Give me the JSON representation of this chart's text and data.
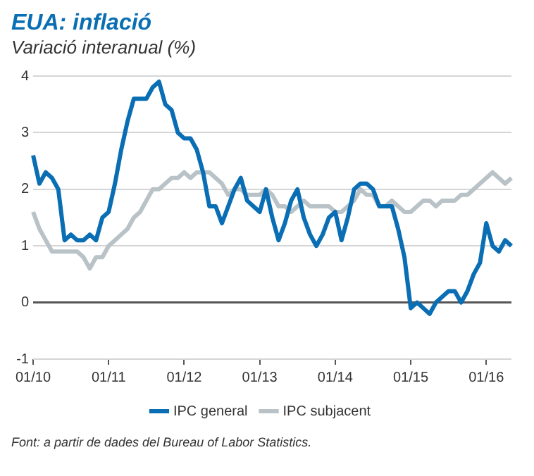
{
  "chart_data": {
    "type": "line",
    "title": "EUA: inflació",
    "subtitle": "Variació interanual (%)",
    "categories": [
      "01/10",
      null,
      null,
      null,
      null,
      null,
      null,
      null,
      null,
      null,
      null,
      null,
      "01/11",
      null,
      null,
      null,
      null,
      null,
      null,
      null,
      null,
      null,
      null,
      null,
      "01/12",
      null,
      null,
      null,
      null,
      null,
      null,
      null,
      null,
      null,
      null,
      null,
      "01/13",
      null,
      null,
      null,
      null,
      null,
      null,
      null,
      null,
      null,
      null,
      null,
      "01/14",
      null,
      null,
      null,
      null,
      null,
      null,
      null,
      null,
      null,
      null,
      null,
      "01/15",
      null,
      null,
      null,
      null,
      null,
      null,
      null,
      null,
      null,
      null,
      null,
      "01/16",
      null,
      null,
      null,
      null
    ],
    "series": [
      {
        "name": "IPC general",
        "color": "#0a6eb4",
        "values": [
          2.6,
          2.1,
          2.3,
          2.2,
          2.0,
          1.1,
          1.2,
          1.1,
          1.1,
          1.2,
          1.1,
          1.5,
          1.6,
          2.1,
          2.7,
          3.2,
          3.6,
          3.6,
          3.6,
          3.8,
          3.9,
          3.5,
          3.4,
          3.0,
          2.9,
          2.9,
          2.7,
          2.3,
          1.7,
          1.7,
          1.4,
          1.7,
          2.0,
          2.2,
          1.8,
          1.7,
          1.6,
          2.0,
          1.5,
          1.1,
          1.4,
          1.8,
          2.0,
          1.5,
          1.2,
          1.0,
          1.2,
          1.5,
          1.6,
          1.1,
          1.5,
          2.0,
          2.1,
          2.1,
          2.0,
          1.7,
          1.7,
          1.7,
          1.3,
          0.8,
          -0.1,
          0.0,
          -0.1,
          -0.2,
          0.0,
          0.1,
          0.2,
          0.2,
          0.0,
          0.2,
          0.5,
          0.7,
          1.4,
          1.0,
          0.9,
          1.1,
          1.0
        ]
      },
      {
        "name": "IPC subjacent",
        "color": "#b9c2c7",
        "values": [
          1.6,
          1.3,
          1.1,
          0.9,
          0.9,
          0.9,
          0.9,
          0.9,
          0.8,
          0.6,
          0.8,
          0.8,
          1.0,
          1.1,
          1.2,
          1.3,
          1.5,
          1.6,
          1.8,
          2.0,
          2.0,
          2.1,
          2.2,
          2.2,
          2.3,
          2.2,
          2.3,
          2.3,
          2.3,
          2.2,
          2.1,
          1.9,
          2.0,
          2.0,
          1.9,
          1.9,
          1.9,
          2.0,
          1.9,
          1.7,
          1.7,
          1.6,
          1.7,
          1.8,
          1.7,
          1.7,
          1.7,
          1.7,
          1.6,
          1.6,
          1.7,
          1.8,
          2.0,
          1.9,
          1.9,
          1.7,
          1.7,
          1.8,
          1.7,
          1.6,
          1.6,
          1.7,
          1.8,
          1.8,
          1.7,
          1.8,
          1.8,
          1.8,
          1.9,
          1.9,
          2.0,
          2.1,
          2.2,
          2.3,
          2.2,
          2.1,
          2.2
        ]
      }
    ],
    "ylim": [
      -1,
      4
    ],
    "yticks": [
      -1,
      0,
      1,
      2,
      3,
      4
    ],
    "grid": "y",
    "legend": "bottom",
    "marker": "none",
    "line_style": "solid",
    "annotations": [
      "Font: a partir de dades del Bureau of Labor Statistics."
    ]
  }
}
